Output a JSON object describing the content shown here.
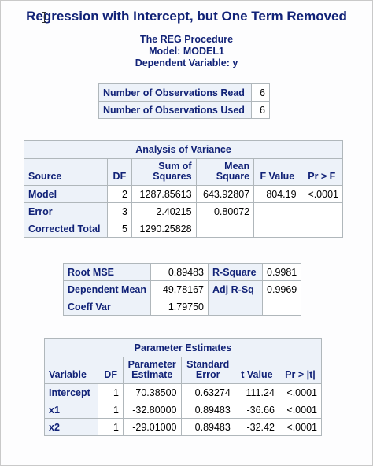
{
  "title": "Regression with Intercept, but One Term Removed",
  "procedure": "The REG Procedure",
  "model": "Model: MODEL1",
  "dependent": "Dependent Variable: y",
  "obs": [
    {
      "label": "Number of Observations Read",
      "value": "6"
    },
    {
      "label": "Number of Observations Used",
      "value": "6"
    }
  ],
  "anova": {
    "caption": "Analysis of Variance",
    "headers": {
      "source": "Source",
      "df": "DF",
      "ss1": "Sum of",
      "ss2": "Squares",
      "ms1": "Mean",
      "ms2": "Square",
      "f": "F Value",
      "p": "Pr > F"
    },
    "rows": [
      {
        "source": "Model",
        "df": "2",
        "ss": "1287.85613",
        "ms": "643.92807",
        "f": "804.19",
        "p": "<.0001"
      },
      {
        "source": "Error",
        "df": "3",
        "ss": "2.40215",
        "ms": "0.80072",
        "f": "",
        "p": ""
      },
      {
        "source": "Corrected Total",
        "df": "5",
        "ss": "1290.25828",
        "ms": "",
        "f": "",
        "p": ""
      }
    ]
  },
  "fit": [
    {
      "l1": "Root MSE",
      "v1": "0.89483",
      "l2": "R-Square",
      "v2": "0.9981"
    },
    {
      "l1": "Dependent Mean",
      "v1": "49.78167",
      "l2": "Adj R-Sq",
      "v2": "0.9969"
    },
    {
      "l1": "Coeff Var",
      "v1": "1.79750",
      "l2": "",
      "v2": ""
    }
  ],
  "params": {
    "caption": "Parameter Estimates",
    "headers": {
      "var": "Variable",
      "df": "DF",
      "est1": "Parameter",
      "est2": "Estimate",
      "se1": "Standard",
      "se2": "Error",
      "t": "t Value",
      "p": "Pr > |t|"
    },
    "rows": [
      {
        "var": "Intercept",
        "df": "1",
        "est": "70.38500",
        "se": "0.63274",
        "t": "111.24",
        "p": "<.0001"
      },
      {
        "var": "x1",
        "df": "1",
        "est": "-32.80000",
        "se": "0.89483",
        "t": "-36.66",
        "p": "<.0001"
      },
      {
        "var": "x2",
        "df": "1",
        "est": "-29.01000",
        "se": "0.89483",
        "t": "-32.42",
        "p": "<.0001"
      }
    ]
  },
  "colors": {
    "header_bg": "#edf2f9",
    "header_text": "#112277",
    "border": "#b0b7bb"
  }
}
